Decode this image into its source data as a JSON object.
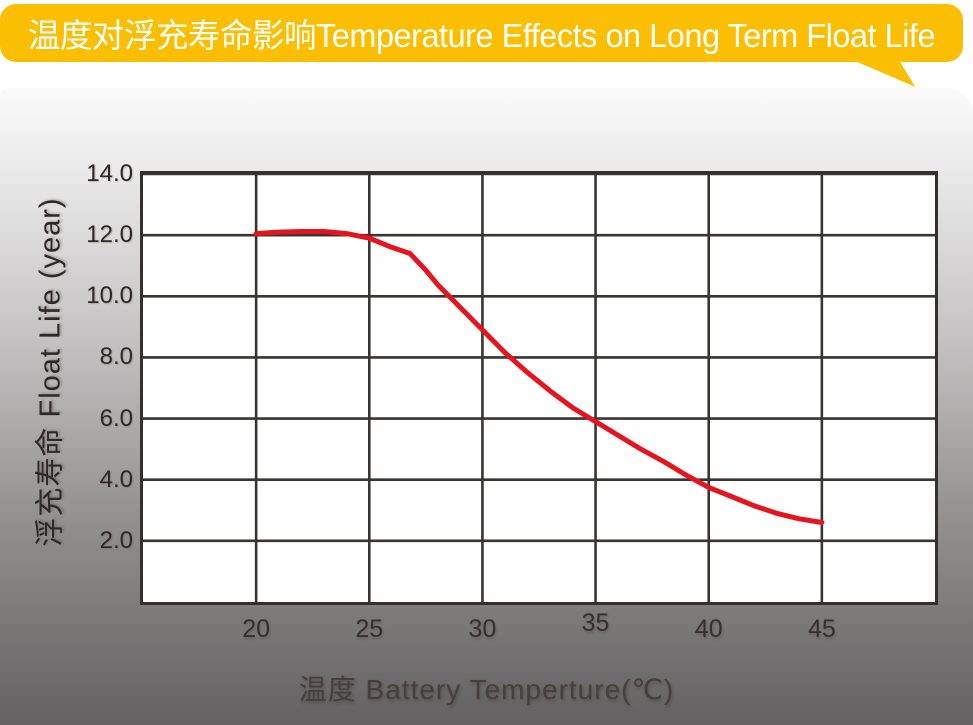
{
  "banner": {
    "title": "温度对浮充寿命影响Temperature Effects on Long Term Float Life",
    "bg_color": "#FBBE00",
    "text_color": "#ffffff"
  },
  "chart_data": {
    "type": "line",
    "title": "温度对浮充寿命影响 Temperature Effects on Long Term Float Life",
    "xlabel": "温度  Battery  Temperture(℃)",
    "ylabel": "浮充寿命  Float Life (year)",
    "xlim": [
      15,
      50
    ],
    "ylim": [
      0,
      14
    ],
    "x_ticks": [
      20,
      25,
      30,
      35,
      40,
      45
    ],
    "x_tick_labels": [
      "20",
      "25",
      "30",
      "35",
      "40",
      "45"
    ],
    "x_tick_dy": [
      0,
      0,
      0,
      -6,
      0,
      0
    ],
    "y_ticks": [
      2,
      4,
      6,
      8,
      10,
      12,
      14
    ],
    "y_tick_labels": [
      "2.0",
      "4.0",
      "6.0",
      "8.0",
      "10.0",
      "12.0",
      "14.0"
    ],
    "grid": true,
    "grid_color": "#3A3432",
    "legend": "none",
    "series": [
      {
        "name": "Float Life",
        "color": "#E6141E",
        "points": [
          [
            20,
            12.05
          ],
          [
            21,
            12.1
          ],
          [
            22,
            12.12
          ],
          [
            23,
            12.12
          ],
          [
            24,
            12.05
          ],
          [
            25,
            11.9
          ],
          [
            26,
            11.6
          ],
          [
            26.8,
            11.4
          ],
          [
            27.5,
            10.85
          ],
          [
            28,
            10.4
          ],
          [
            29,
            9.65
          ],
          [
            30,
            8.9
          ],
          [
            31,
            8.15
          ],
          [
            32,
            7.5
          ],
          [
            33,
            6.9
          ],
          [
            34,
            6.35
          ],
          [
            35,
            5.9
          ],
          [
            36,
            5.45
          ],
          [
            37,
            5.0
          ],
          [
            38,
            4.6
          ],
          [
            39,
            4.15
          ],
          [
            40,
            3.75
          ],
          [
            41,
            3.45
          ],
          [
            42,
            3.15
          ],
          [
            43,
            2.9
          ],
          [
            44,
            2.72
          ],
          [
            45,
            2.6
          ]
        ]
      }
    ]
  }
}
